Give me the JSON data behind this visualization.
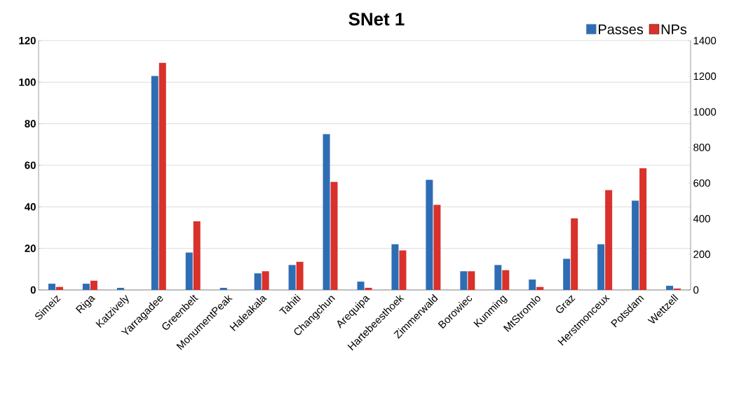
{
  "chart_data": {
    "type": "bar",
    "title": "SNet 1",
    "categories": [
      "Simeiz",
      "Riga",
      "Katzively",
      "Yarragadee",
      "Greenbelt",
      "MonumentPeak",
      "Haleakala",
      "Tahiti",
      "Changchun",
      "Arequipa",
      "Hartebeesthoek",
      "Zimmerwald",
      "Borowiec",
      "Kunming",
      "MtStromlo",
      "Graz",
      "Herstmonceux",
      "Potsdam",
      "Wettzell"
    ],
    "series": [
      {
        "name": "Passes",
        "color": "#2e6db4",
        "values": [
          3,
          3,
          1,
          103,
          18,
          1,
          8,
          12,
          75,
          4,
          22,
          53,
          9,
          12,
          5,
          15,
          22,
          43,
          2
        ]
      },
      {
        "name": "NPs",
        "color": "#d9312b",
        "axis": "y2",
        "values": [
          17,
          52,
          null,
          1275,
          385,
          null,
          105,
          158,
          607,
          12,
          222,
          478,
          105,
          111,
          17,
          402,
          560,
          683,
          8
        ]
      }
    ],
    "ylim": [
      0,
      120
    ],
    "yticks": [
      0,
      20,
      40,
      60,
      80,
      100,
      120
    ],
    "y2lim": [
      0,
      1400
    ],
    "y2ticks": [
      0,
      200,
      400,
      600,
      800,
      1000,
      1200,
      1400
    ],
    "grid": "y",
    "legend": "top right"
  }
}
